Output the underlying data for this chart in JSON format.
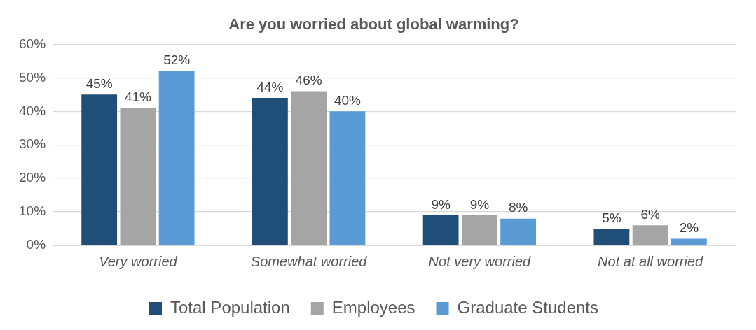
{
  "chart_data": {
    "type": "bar",
    "title": "Are you worried about global warming?",
    "categories": [
      "Very worried",
      "Somewhat worried",
      "Not very worried",
      "Not at all worried"
    ],
    "series": [
      {
        "name": "Total Population",
        "color": "#1f4e79",
        "values": [
          45,
          44,
          9,
          5
        ],
        "value_labels": [
          "45%",
          "44%",
          "9%",
          "5%"
        ]
      },
      {
        "name": "Employees",
        "color": "#a5a5a5",
        "values": [
          41,
          46,
          9,
          6
        ],
        "value_labels": [
          "41%",
          "46%",
          "9%",
          "6%"
        ]
      },
      {
        "name": "Graduate Students",
        "color": "#5b9bd5",
        "values": [
          52,
          40,
          8,
          2
        ],
        "value_labels": [
          "52%",
          "40%",
          "8%",
          "2%"
        ]
      }
    ],
    "ylim": [
      0,
      60
    ],
    "yticks": [
      {
        "value": 0,
        "label": "0%"
      },
      {
        "value": 10,
        "label": "10%"
      },
      {
        "value": 20,
        "label": "20%"
      },
      {
        "value": 30,
        "label": "30%"
      },
      {
        "value": 40,
        "label": "40%"
      },
      {
        "value": 50,
        "label": "50%"
      },
      {
        "value": 60,
        "label": "60%"
      }
    ],
    "grid": "y",
    "legend": "bottom"
  }
}
